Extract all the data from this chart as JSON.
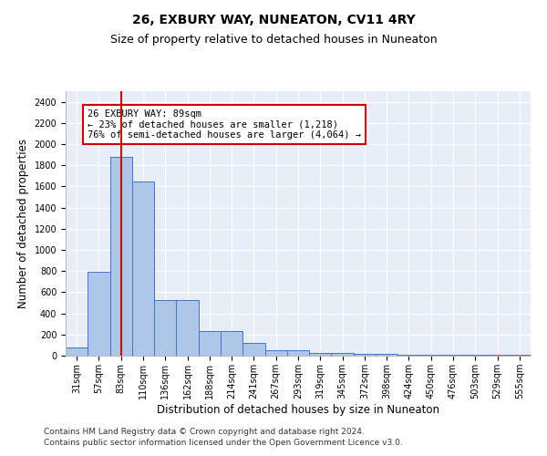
{
  "title": "26, EXBURY WAY, NUNEATON, CV11 4RY",
  "subtitle": "Size of property relative to detached houses in Nuneaton",
  "xlabel": "Distribution of detached houses by size in Nuneaton",
  "ylabel": "Number of detached properties",
  "categories": [
    "31sqm",
    "57sqm",
    "83sqm",
    "110sqm",
    "136sqm",
    "162sqm",
    "188sqm",
    "214sqm",
    "241sqm",
    "267sqm",
    "293sqm",
    "319sqm",
    "345sqm",
    "372sqm",
    "398sqm",
    "424sqm",
    "450sqm",
    "476sqm",
    "503sqm",
    "529sqm",
    "555sqm"
  ],
  "values": [
    75,
    790,
    1880,
    1650,
    530,
    530,
    235,
    235,
    120,
    50,
    50,
    30,
    30,
    18,
    18,
    5,
    5,
    5,
    5,
    5,
    5
  ],
  "bar_color": "#aec6e8",
  "bar_edge_color": "#4472c4",
  "vline_index": 2,
  "vline_color": "#cc0000",
  "annotation_title": "26 EXBURY WAY: 89sqm",
  "annotation_line1": "← 23% of detached houses are smaller (1,218)",
  "annotation_line2": "76% of semi-detached houses are larger (4,064) →",
  "annotation_box_facecolor": "#ffffff",
  "annotation_box_edgecolor": "#cc0000",
  "ylim": [
    0,
    2500
  ],
  "yticks": [
    0,
    200,
    400,
    600,
    800,
    1000,
    1200,
    1400,
    1600,
    1800,
    2000,
    2200,
    2400
  ],
  "footer_line1": "Contains HM Land Registry data © Crown copyright and database right 2024.",
  "footer_line2": "Contains public sector information licensed under the Open Government Licence v3.0.",
  "bg_color": "#e8eef8",
  "fig_bg_color": "#ffffff",
  "title_fontsize": 10,
  "subtitle_fontsize": 9,
  "xlabel_fontsize": 8.5,
  "ylabel_fontsize": 8.5,
  "tick_fontsize": 7,
  "footer_fontsize": 6.5,
  "annotation_fontsize": 7.5
}
